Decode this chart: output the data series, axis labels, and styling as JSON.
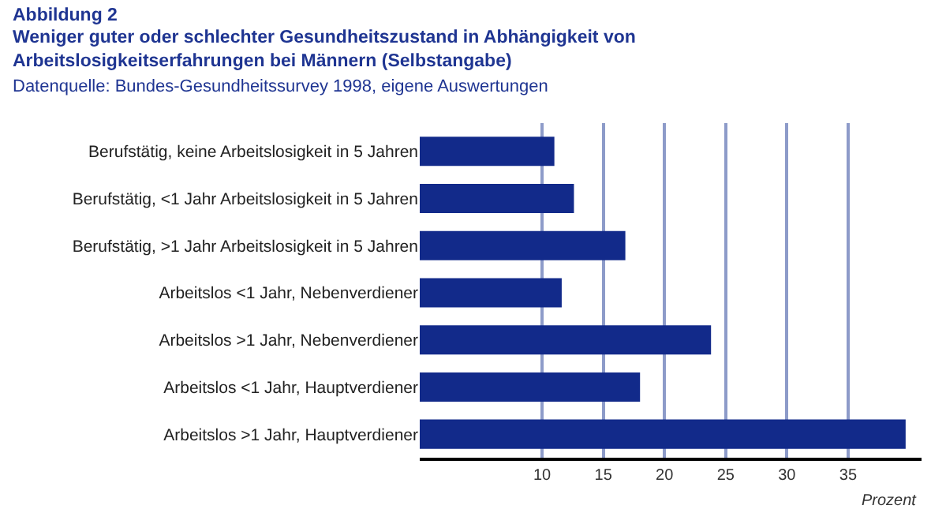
{
  "chart_data": {
    "type": "bar",
    "orientation": "horizontal",
    "title": "Abbildung 2",
    "subtitle": "Weniger guter oder schlechter Gesundheitszustand in Abhängigkeit von Arbeitslosigkeitserfahrungen bei Männern (Selbstangabe)",
    "annotations": [
      "Datenquelle: Bundes-Gesundheitssurvey 1998, eigene Auswertungen"
    ],
    "xlabel": "Prozent",
    "categories": [
      "Berufstätig, keine Arbeitslosigkeit in 5 Jahren",
      "Berufstätig, <1 Jahr Arbeitslosigkeit in 5 Jahren",
      "Berufstätig, >1 Jahr Arbeitslosigkeit in 5 Jahren",
      "Arbeitslos <1 Jahr, Nebenverdiener",
      "Arbeitslos >1 Jahr, Nebenverdiener",
      "Arbeitslos <1 Jahr, Hauptverdiener",
      "Arbeitslos >1 Jahr, Hauptverdiener"
    ],
    "values": [
      11.0,
      12.6,
      16.8,
      11.6,
      23.8,
      18.0,
      39.7
    ],
    "color": "#122a8a",
    "xlim": [
      0,
      41
    ],
    "xticks": [
      10,
      15,
      20,
      25,
      30,
      35
    ],
    "grid": "x"
  }
}
